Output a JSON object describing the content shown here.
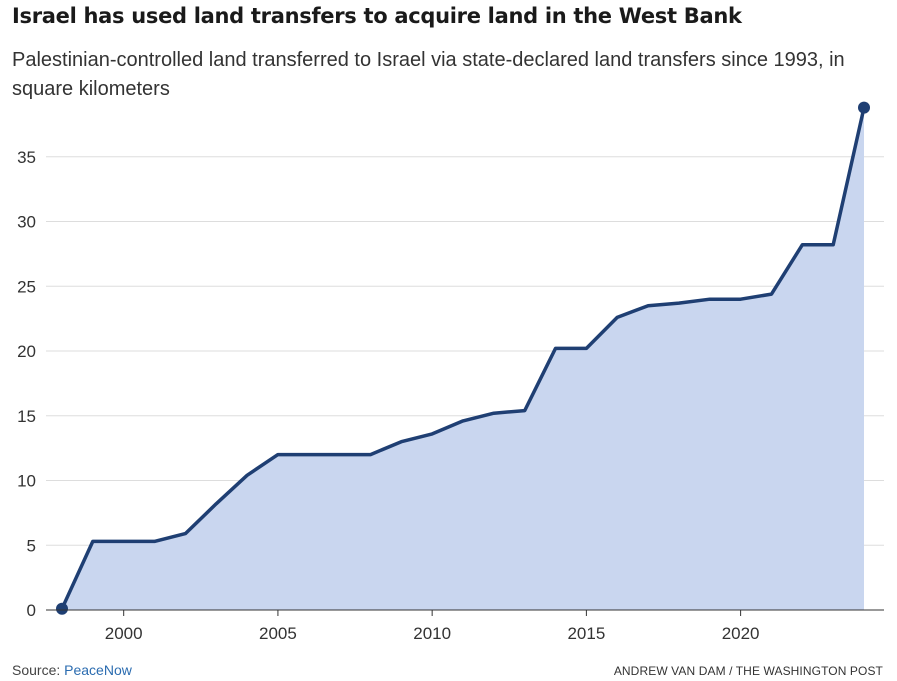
{
  "title": "Israel has used land transfers to acquire land in the West Bank",
  "subtitle": "Palestinian-controlled land transferred to Israel via state-declared land transfers since 1993, in square kilometers",
  "footer": {
    "source_label": "Source: ",
    "source_link": "PeaceNow",
    "credit": "ANDREW VAN DAM / THE WASHINGTON POST"
  },
  "colors": {
    "line": "#1f3f73",
    "area": "#c9d6ef",
    "grid": "#dddddd",
    "axis": "#333333"
  },
  "chart_data": {
    "type": "area",
    "title": "Israel has used land transfers to acquire land in the West Bank",
    "subtitle": "Palestinian-controlled land transferred to Israel via state-declared land transfers since 1993, in square kilometers",
    "xlabel": "",
    "ylabel": "",
    "xlim": [
      1997.5,
      2024.6
    ],
    "ylim": [
      0,
      39
    ],
    "x_ticks": [
      2000,
      2005,
      2010,
      2015,
      2020
    ],
    "y_ticks": [
      0,
      5,
      10,
      15,
      20,
      25,
      30,
      35
    ],
    "grid": "horizontal",
    "endpoint_markers": true,
    "series": [
      {
        "x": [
          1998,
          1999,
          2000,
          2001,
          2002,
          2003,
          2004,
          2005,
          2006,
          2007,
          2008,
          2009,
          2010,
          2011,
          2012,
          2013,
          2014,
          2015,
          2016,
          2017,
          2018,
          2019,
          2020,
          2021,
          2022,
          2023,
          2024
        ],
        "values": [
          0.1,
          5.3,
          5.3,
          5.3,
          5.9,
          8.2,
          10.4,
          12.0,
          12.0,
          12.0,
          12.0,
          13.0,
          13.6,
          14.6,
          15.2,
          15.4,
          20.2,
          20.2,
          22.6,
          23.5,
          23.7,
          24.0,
          24.0,
          24.4,
          28.2,
          28.2,
          38.8
        ]
      }
    ]
  }
}
